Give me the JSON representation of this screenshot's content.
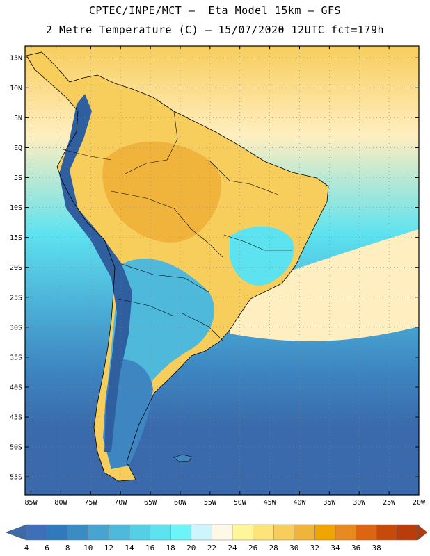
{
  "header": {
    "line1": "CPTEC/INPE/MCT –  Eta Model 15km – GFS",
    "line2": "2 Metre Temperature (C) – 15/07/2020 12UTC fct=179h"
  },
  "axes": {
    "lat_labels": [
      "15N",
      "10N",
      "5N",
      "EQ",
      "5S",
      "10S",
      "15S",
      "20S",
      "25S",
      "30S",
      "35S",
      "40S",
      "45S",
      "50S",
      "55S"
    ],
    "lon_labels": [
      "85W",
      "80W",
      "75W",
      "70W",
      "65W",
      "60W",
      "55W",
      "50W",
      "45W",
      "40W",
      "35W",
      "30W",
      "25W",
      "20W"
    ],
    "lat_range": [
      17,
      -58
    ],
    "lon_range": [
      -86,
      -20
    ]
  },
  "colorbar": {
    "labels": [
      "4",
      "6",
      "8",
      "10",
      "12",
      "14",
      "16",
      "18",
      "20",
      "22",
      "24",
      "26",
      "28",
      "30",
      "32",
      "34",
      "36",
      "38"
    ],
    "colors": [
      "#3f6fb8",
      "#2f79bd",
      "#3a8cc5",
      "#47a3d2",
      "#4fb9dc",
      "#55cfe6",
      "#5de2ef",
      "#6cf5f9",
      "#ccf5fc",
      "#fff8e6",
      "#fff59a",
      "#fce37a",
      "#f7cd5c",
      "#f0b43c",
      "#f0a400",
      "#e88a20",
      "#dd6410",
      "#c84a0a",
      "#b83d0a"
    ],
    "low_end_color": "#3e6aa8",
    "high_end_color": "#b23c0c"
  },
  "map_colors": {
    "ocean_south": "#3a6aab",
    "ocean_mid": "#3d86c2",
    "ocean_light": "#4fb9dc",
    "ocean_cyan": "#5de2ef",
    "subtropic_pale": "#ffeec0",
    "north_warm": "#f7cd5c",
    "land_hot": "#f0b43c",
    "land_warm": "#f7cd5c",
    "highlands": "#5de2ef",
    "patagonia": "#3d86c2",
    "andes_cold": "#2f5f9e"
  }
}
